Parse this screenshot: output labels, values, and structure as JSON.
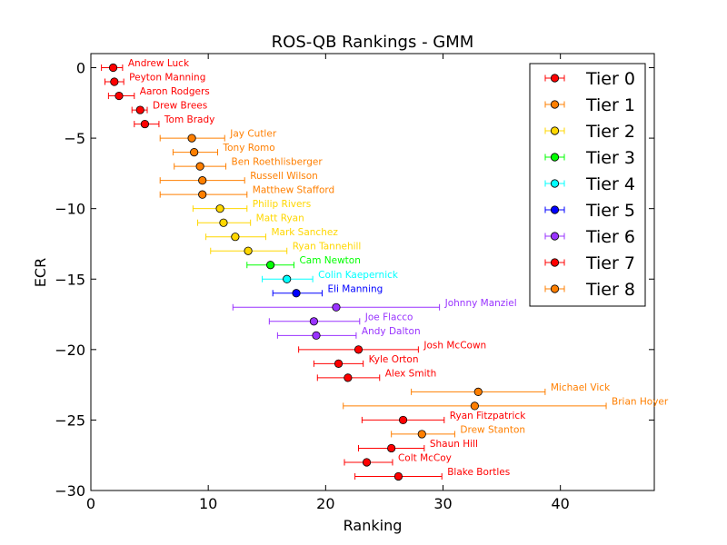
{
  "chart_data": {
    "type": "scatter",
    "title": "ROS-QB Rankings - GMM",
    "xlabel": "Ranking",
    "ylabel": "ECR",
    "xlim": [
      0,
      48
    ],
    "ylim": [
      -30,
      1
    ],
    "xticks": [
      0,
      10,
      20,
      30,
      40
    ],
    "yticks": [
      0,
      -5,
      -10,
      -15,
      -20,
      -25,
      -30
    ],
    "xtick_labels": [
      "0",
      "10",
      "20",
      "30",
      "40"
    ],
    "ytick_labels": [
      "0",
      "−5",
      "−10",
      "−15",
      "−20",
      "−25",
      "−30"
    ],
    "grid": false,
    "legend_position": "top-right",
    "error_bars": "horizontal",
    "colors": {
      "Tier 0": "#ff0000",
      "Tier 1": "#ff7f00",
      "Tier 2": "#ffd700",
      "Tier 3": "#00ff00",
      "Tier 4": "#00ffff",
      "Tier 5": "#0000ff",
      "Tier 6": "#9933ff",
      "Tier 7": "#ff0000",
      "Tier 8": "#ff7f00"
    },
    "legend": [
      "Tier 0",
      "Tier 1",
      "Tier 2",
      "Tier 3",
      "Tier 4",
      "Tier 5",
      "Tier 6",
      "Tier 7",
      "Tier 8"
    ],
    "points": [
      {
        "name": "Andrew Luck",
        "tier": "Tier 0",
        "ecr": 0,
        "rank": 1.9,
        "low": 0.9,
        "high": 2.7
      },
      {
        "name": "Peyton Manning",
        "tier": "Tier 0",
        "ecr": -1,
        "rank": 2.0,
        "low": 1.2,
        "high": 2.8
      },
      {
        "name": "Aaron Rodgers",
        "tier": "Tier 0",
        "ecr": -2,
        "rank": 2.4,
        "low": 1.5,
        "high": 3.7
      },
      {
        "name": "Drew Brees",
        "tier": "Tier 0",
        "ecr": -3,
        "rank": 4.2,
        "low": 3.5,
        "high": 4.8
      },
      {
        "name": "Tom Brady",
        "tier": "Tier 0",
        "ecr": -4,
        "rank": 4.6,
        "low": 3.7,
        "high": 5.8
      },
      {
        "name": "Jay Cutler",
        "tier": "Tier 1",
        "ecr": -5,
        "rank": 8.6,
        "low": 5.9,
        "high": 11.4
      },
      {
        "name": "Tony Romo",
        "tier": "Tier 1",
        "ecr": -6,
        "rank": 8.8,
        "low": 7.0,
        "high": 10.8
      },
      {
        "name": "Ben Roethlisberger",
        "tier": "Tier 1",
        "ecr": -7,
        "rank": 9.3,
        "low": 7.1,
        "high": 11.5
      },
      {
        "name": "Russell Wilson",
        "tier": "Tier 1",
        "ecr": -8,
        "rank": 9.5,
        "low": 5.9,
        "high": 13.1
      },
      {
        "name": "Matthew Stafford",
        "tier": "Tier 1",
        "ecr": -9,
        "rank": 9.5,
        "low": 5.9,
        "high": 13.3
      },
      {
        "name": "Philip Rivers",
        "tier": "Tier 2",
        "ecr": -10,
        "rank": 11.0,
        "low": 8.7,
        "high": 13.3
      },
      {
        "name": "Matt Ryan",
        "tier": "Tier 2",
        "ecr": -11,
        "rank": 11.3,
        "low": 9.1,
        "high": 13.6
      },
      {
        "name": "Mark Sanchez",
        "tier": "Tier 2",
        "ecr": -12,
        "rank": 12.3,
        "low": 9.8,
        "high": 14.9
      },
      {
        "name": "Ryan Tannehill",
        "tier": "Tier 2",
        "ecr": -13,
        "rank": 13.4,
        "low": 10.2,
        "high": 16.7
      },
      {
        "name": "Cam Newton",
        "tier": "Tier 3",
        "ecr": -14,
        "rank": 15.3,
        "low": 13.3,
        "high": 17.3
      },
      {
        "name": "Colin Kaepernick",
        "tier": "Tier 4",
        "ecr": -15,
        "rank": 16.7,
        "low": 14.6,
        "high": 18.9
      },
      {
        "name": "Eli Manning",
        "tier": "Tier 5",
        "ecr": -16,
        "rank": 17.5,
        "low": 15.5,
        "high": 19.7
      },
      {
        "name": "Johnny Manziel",
        "tier": "Tier 6",
        "ecr": -17,
        "rank": 20.9,
        "low": 12.1,
        "high": 29.7
      },
      {
        "name": "Joe Flacco",
        "tier": "Tier 6",
        "ecr": -18,
        "rank": 19.0,
        "low": 15.2,
        "high": 22.9
      },
      {
        "name": "Andy Dalton",
        "tier": "Tier 6",
        "ecr": -19,
        "rank": 19.2,
        "low": 15.9,
        "high": 22.6
      },
      {
        "name": "Josh McCown",
        "tier": "Tier 7",
        "ecr": -20,
        "rank": 22.8,
        "low": 17.7,
        "high": 27.9
      },
      {
        "name": "Kyle Orton",
        "tier": "Tier 7",
        "ecr": -21,
        "rank": 21.1,
        "low": 19.0,
        "high": 23.2
      },
      {
        "name": "Alex Smith",
        "tier": "Tier 7",
        "ecr": -22,
        "rank": 21.9,
        "low": 19.3,
        "high": 24.6
      },
      {
        "name": "Michael Vick",
        "tier": "Tier 8",
        "ecr": -23,
        "rank": 33.0,
        "low": 27.3,
        "high": 38.7
      },
      {
        "name": "Brian Hoyer",
        "tier": "Tier 8",
        "ecr": -24,
        "rank": 32.7,
        "low": 21.5,
        "high": 43.9
      },
      {
        "name": "Ryan Fitzpatrick",
        "tier": "Tier 7",
        "ecr": -25,
        "rank": 26.6,
        "low": 23.1,
        "high": 30.1
      },
      {
        "name": "Drew Stanton",
        "tier": "Tier 8",
        "ecr": -26,
        "rank": 28.2,
        "low": 25.6,
        "high": 31.0
      },
      {
        "name": "Shaun Hill",
        "tier": "Tier 7",
        "ecr": -27,
        "rank": 25.6,
        "low": 22.8,
        "high": 28.4
      },
      {
        "name": "Colt McCoy",
        "tier": "Tier 7",
        "ecr": -28,
        "rank": 23.5,
        "low": 21.6,
        "high": 25.7
      },
      {
        "name": "Blake Bortles",
        "tier": "Tier 7",
        "ecr": -29,
        "rank": 26.2,
        "low": 22.5,
        "high": 29.9
      }
    ]
  }
}
